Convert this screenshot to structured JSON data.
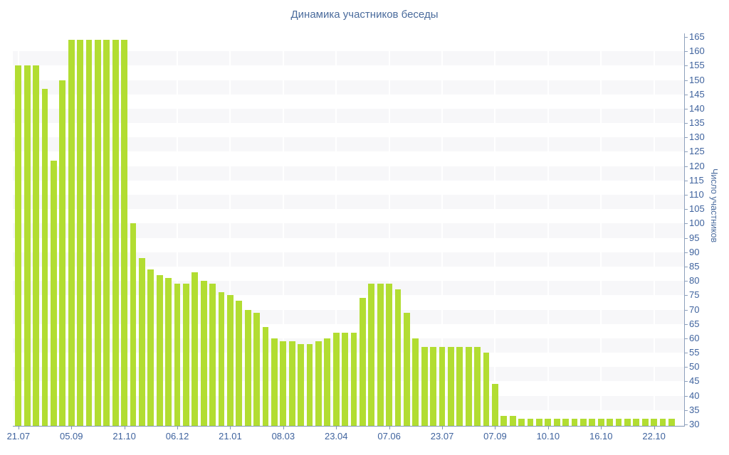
{
  "title": "Динамика участников беседы",
  "colors": {
    "bar": "#b2dd32",
    "stripe": "#f7f7f9",
    "axis_line": "#8095b5",
    "tick_label": "#3f639e",
    "title_text": "#4a6b9c",
    "background": "#ffffff"
  },
  "chart_data": {
    "type": "bar",
    "title": "Динамика участников беседы",
    "xlabel": "",
    "ylabel": "Число участников",
    "ylim": [
      30,
      165
    ],
    "y_tick_step": 5,
    "y_ticks": [
      165,
      160,
      155,
      150,
      145,
      140,
      135,
      130,
      125,
      120,
      115,
      110,
      105,
      100,
      95,
      90,
      85,
      80,
      75,
      70,
      65,
      60,
      55,
      50,
      45,
      40,
      35,
      30
    ],
    "grid": "horizontal-stripes-every-5-units",
    "legend_position": "none",
    "axis_side": "right",
    "values": [
      155,
      155,
      155,
      147,
      122,
      150,
      164,
      164,
      164,
      164,
      164,
      164,
      164,
      100,
      88,
      84,
      82,
      81,
      79,
      79,
      83,
      80,
      79,
      76,
      75,
      73,
      70,
      69,
      64,
      60,
      59,
      59,
      58,
      58,
      59,
      60,
      62,
      62,
      62,
      74,
      79,
      79,
      79,
      77,
      69,
      60,
      57,
      57,
      57,
      57,
      57,
      57,
      57,
      55,
      44,
      33,
      33,
      32,
      32,
      32,
      32,
      32,
      32,
      32,
      32,
      32,
      32,
      32,
      32,
      32,
      32,
      32,
      32,
      32,
      32
    ],
    "x_tick_labels": [
      {
        "index": 0,
        "label": "21.07"
      },
      {
        "index": 6,
        "label": "05.09"
      },
      {
        "index": 12,
        "label": "21.10"
      },
      {
        "index": 18,
        "label": "06.12"
      },
      {
        "index": 24,
        "label": "21.01"
      },
      {
        "index": 30,
        "label": "08.03"
      },
      {
        "index": 36,
        "label": "23.04"
      },
      {
        "index": 42,
        "label": "07.06"
      },
      {
        "index": 48,
        "label": "23.07"
      },
      {
        "index": 54,
        "label": "07.09"
      },
      {
        "index": 60,
        "label": "10.10"
      },
      {
        "index": 66,
        "label": "16.10"
      },
      {
        "index": 72,
        "label": "22.10"
      }
    ]
  }
}
